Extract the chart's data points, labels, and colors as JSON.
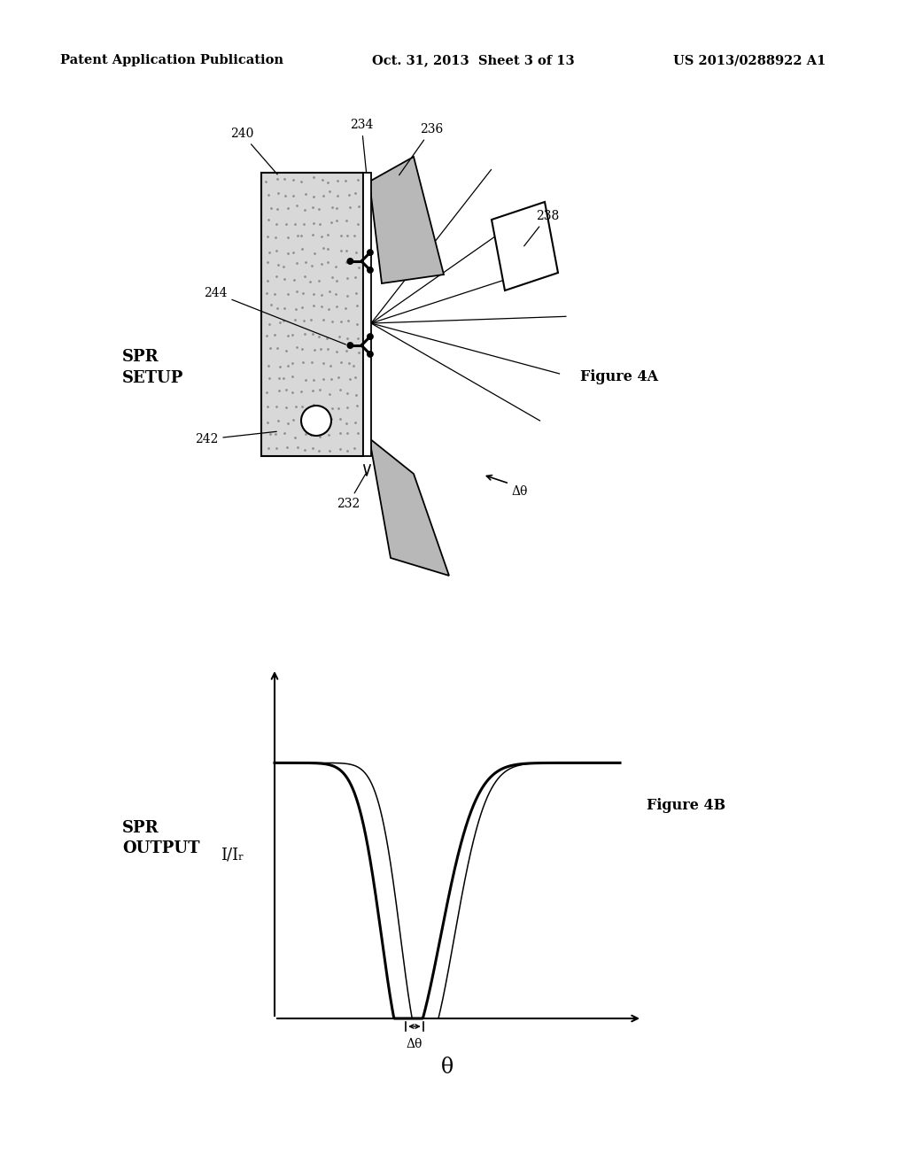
{
  "background_color": "#ffffff",
  "header_left": "Patent Application Publication",
  "header_center": "Oct. 31, 2013  Sheet 3 of 13",
  "header_right": "US 2013/0288922 A1",
  "fig4a_label": "Figure 4A",
  "fig4b_label": "Figure 4B",
  "spr_setup_label": "SPR\nSETUP",
  "spr_output_label": "SPR\nOUTPUT",
  "delta_theta_symbol": "Δθ",
  "theta_symbol": "θ",
  "I_Ir_label": "I/Iᵣ"
}
